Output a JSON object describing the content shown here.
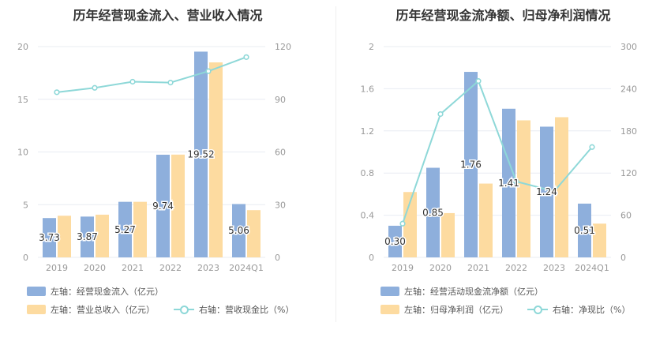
{
  "colors": {
    "bar_primary": "#8eafdc",
    "bar_secondary": "#fddba0",
    "line": "#8ed8d8",
    "grid": "#e8ecf2"
  },
  "left": {
    "title": "历年经营现金流入、营业收入情况",
    "legend": {
      "bar1": "左轴：经营现金流入（亿元）",
      "bar2": "左轴：营业总收入（亿元）",
      "line": "右轴：营收现金比（%）"
    }
  },
  "right": {
    "title": "历年经营现金流净额、归母净利润情况",
    "legend": {
      "bar1": "左轴：经营活动现金流净额（亿元）",
      "bar2": "左轴：归母净利润（亿元）",
      "line": "右轴：净现比（%）"
    }
  },
  "chart_data": [
    {
      "type": "bar",
      "title": "历年经营现金流入、营业收入情况",
      "categories": [
        "2019",
        "2020",
        "2021",
        "2022",
        "2023",
        "2024Q1"
      ],
      "ylim_left": [
        0,
        20
      ],
      "yticks_left": [
        "0",
        "5",
        "10",
        "15",
        "20"
      ],
      "ylim_right": [
        0,
        120
      ],
      "yticks_right": [
        "0",
        "30",
        "60",
        "90",
        "120"
      ],
      "series": [
        {
          "name": "左轴：经营现金流入（亿元）",
          "axis": "left",
          "type": "bar",
          "values": [
            3.73,
            3.87,
            5.27,
            9.74,
            19.52,
            5.06
          ],
          "labels": [
            "3.73",
            "3.87",
            "5.27",
            "9.74",
            "19.52",
            "5.06"
          ]
        },
        {
          "name": "左轴：营业总收入（亿元）",
          "axis": "left",
          "type": "bar",
          "values": [
            3.95,
            4.05,
            5.27,
            9.75,
            18.5,
            4.48
          ]
        },
        {
          "name": "右轴：营收现金比（%）",
          "axis": "right",
          "type": "line",
          "values": [
            94,
            96.5,
            100,
            99.5,
            106,
            114
          ]
        }
      ]
    },
    {
      "type": "bar",
      "title": "历年经营现金流净额、归母净利润情况",
      "categories": [
        "2019",
        "2020",
        "2021",
        "2022",
        "2023",
        "2024Q1"
      ],
      "ylim_left": [
        0,
        2
      ],
      "yticks_left": [
        "0",
        "0.4",
        "0.8",
        "1.2",
        "1.6",
        "2"
      ],
      "ylim_right": [
        0,
        300
      ],
      "yticks_right": [
        "0",
        "60",
        "120",
        "180",
        "240",
        "300"
      ],
      "series": [
        {
          "name": "左轴：经营活动现金流净额（亿元）",
          "axis": "left",
          "type": "bar",
          "values": [
            0.3,
            0.85,
            1.76,
            1.41,
            1.24,
            0.51
          ],
          "labels": [
            "0.30",
            "0.85",
            "1.76",
            "1.41",
            "1.24",
            "0.51"
          ]
        },
        {
          "name": "左轴：归母净利润（亿元）",
          "axis": "left",
          "type": "bar",
          "values": [
            0.62,
            0.42,
            0.7,
            1.3,
            1.33,
            0.32
          ]
        },
        {
          "name": "右轴：净现比（%）",
          "axis": "right",
          "type": "line",
          "values": [
            48,
            204,
            251,
            108,
            94,
            157
          ]
        }
      ]
    }
  ]
}
